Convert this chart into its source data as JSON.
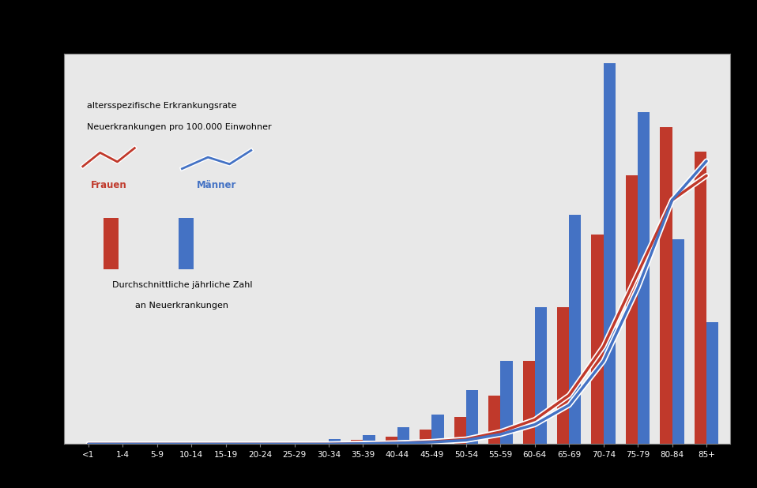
{
  "age_groups": [
    "<1",
    "1-4",
    "5-9",
    "10-14",
    "15-19",
    "20-24",
    "25-29",
    "30-34",
    "35-39",
    "40-44",
    "45-49",
    "50-54",
    "55-59",
    "60-64",
    "65-69",
    "70-74",
    "75-79",
    "80-84",
    "85+"
  ],
  "bars_frauen": [
    0,
    0,
    0,
    0,
    0,
    0,
    0,
    0.3,
    0.8,
    1.5,
    3.0,
    5.5,
    10.0,
    17.0,
    28.0,
    43.0,
    55.0,
    65.0,
    60.0
  ],
  "bars_maenner": [
    0,
    0,
    0,
    0,
    0,
    0,
    0.5,
    1.0,
    1.8,
    3.5,
    6.0,
    11.0,
    17.0,
    28.0,
    47.0,
    78.0,
    68.0,
    42.0,
    25.0
  ],
  "line_frauen": [
    0,
    0,
    0,
    0,
    0,
    0,
    0,
    0,
    0.1,
    0.2,
    0.5,
    1.0,
    2.5,
    5.0,
    10.0,
    20.0,
    35.0,
    50.0,
    55.0
  ],
  "line_maenner": [
    0,
    0,
    0,
    0,
    0,
    0,
    0,
    0,
    0.1,
    0.2,
    0.4,
    0.8,
    2.0,
    4.0,
    8.0,
    17.0,
    32.0,
    50.0,
    58.0
  ],
  "color_frauen": "#c0392b",
  "color_maenner": "#4472c4",
  "color_white": "#ffffff",
  "outer_bg": "#000000",
  "plot_bg": "#d8d8d8",
  "plot_bg_inner": "#e8e8e8",
  "grid_color": "#888888",
  "ylim": [
    0,
    80
  ],
  "line_ylim": [
    0,
    80
  ],
  "legend_line1": "altersspezifische Erkrankungsrate",
  "legend_line2": "Neuerkrankungen pro 100.000 Einwohner",
  "legend_bar1": "Durchschnittliche jährliche Zahl",
  "legend_bar2": "an Neuerkrankungen",
  "label_frauen": "Frauen",
  "label_maenner": "Männer"
}
